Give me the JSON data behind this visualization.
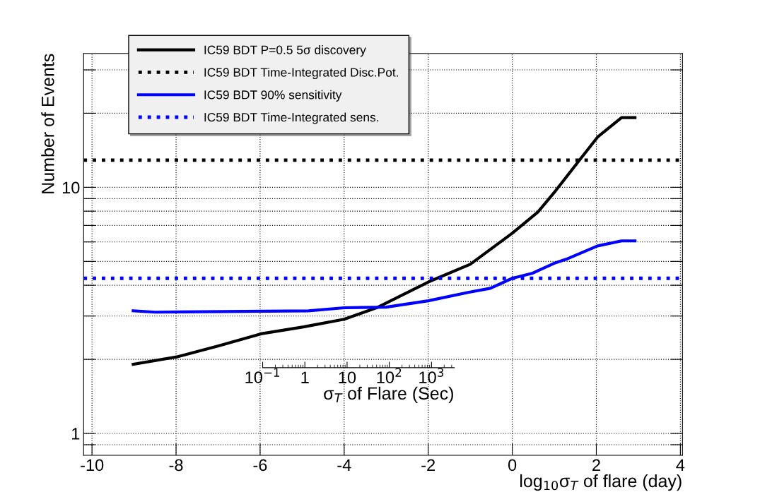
{
  "chart_data": [
    {
      "type": "line",
      "xlabel": "log$_{10}$σ$_{T}$ of flare (day)",
      "ylabel": "Number of Events",
      "xlim": [
        -10.2,
        4.05
      ],
      "xticks": [
        -10,
        -8,
        -6,
        -4,
        -2,
        0,
        2,
        4
      ],
      "ylim": [
        0.815,
        35
      ],
      "log": "y",
      "yticks": [
        {
          "value": 0.9,
          "label": null
        },
        1,
        {
          "value": 2,
          "label": null
        },
        {
          "value": 3,
          "label": null
        },
        {
          "value": 4,
          "label": null
        },
        {
          "value": 5,
          "label": null
        },
        {
          "value": 6,
          "label": null
        },
        {
          "value": 7,
          "label": null
        },
        {
          "value": 8,
          "label": null
        },
        {
          "value": 9,
          "label": null
        },
        10,
        {
          "value": 20,
          "label": null
        },
        {
          "value": 30,
          "label": null
        }
      ],
      "grid": true,
      "legend": "top left",
      "line_style": "solid",
      "marker": "none",
      "series": [
        {
          "name": "IC59 BDT P=0.5 5σ discovery",
          "color": "#000000",
          "x": [
            -9.02,
            -7.96,
            -6.99,
            -5.98,
            -4.97,
            -4.0,
            -3.23,
            -1.99,
            -1.0,
            0.0,
            0.61,
            1.03,
            1.6,
            2.03,
            2.6,
            2.92
          ],
          "values": [
            1.91,
            2.05,
            2.27,
            2.54,
            2.71,
            2.91,
            3.24,
            4.13,
            4.87,
            6.51,
            7.94,
            9.68,
            12.9,
            16.0,
            19.2,
            19.2
          ]
        },
        {
          "name": "IC59 BDT 90% sensitivity",
          "color": "#0000ff",
          "x": [
            -9.02,
            -8.5,
            -4.85,
            -4.0,
            -3.0,
            -2.0,
            -1.05,
            -0.52,
            0.0,
            0.47,
            1.03,
            1.32,
            2.03,
            2.6,
            2.92
          ],
          "values": [
            3.15,
            3.11,
            3.15,
            3.24,
            3.26,
            3.46,
            3.74,
            3.89,
            4.27,
            4.47,
            4.94,
            5.13,
            5.78,
            6.06,
            6.06
          ]
        }
      ],
      "ref_lines": [
        {
          "axis": "y",
          "value": 12.9,
          "label": "IC59 BDT Time-Integrated Disc.Pot.",
          "color": "#000000",
          "line_style": "dotted"
        },
        {
          "axis": "y",
          "value": 4.27,
          "label": "IC59 BDT Time-Integrated sens.",
          "color": "#0000ff",
          "line_style": "dotted"
        }
      ]
    },
    {
      "type": "other",
      "xlabel": "σ$_{T}$ of Flare (Sec)",
      "annotations": [
        "10$^{−1}$",
        "1",
        "10",
        "10$^{2}$",
        "10$^{3}$"
      ]
    }
  ]
}
